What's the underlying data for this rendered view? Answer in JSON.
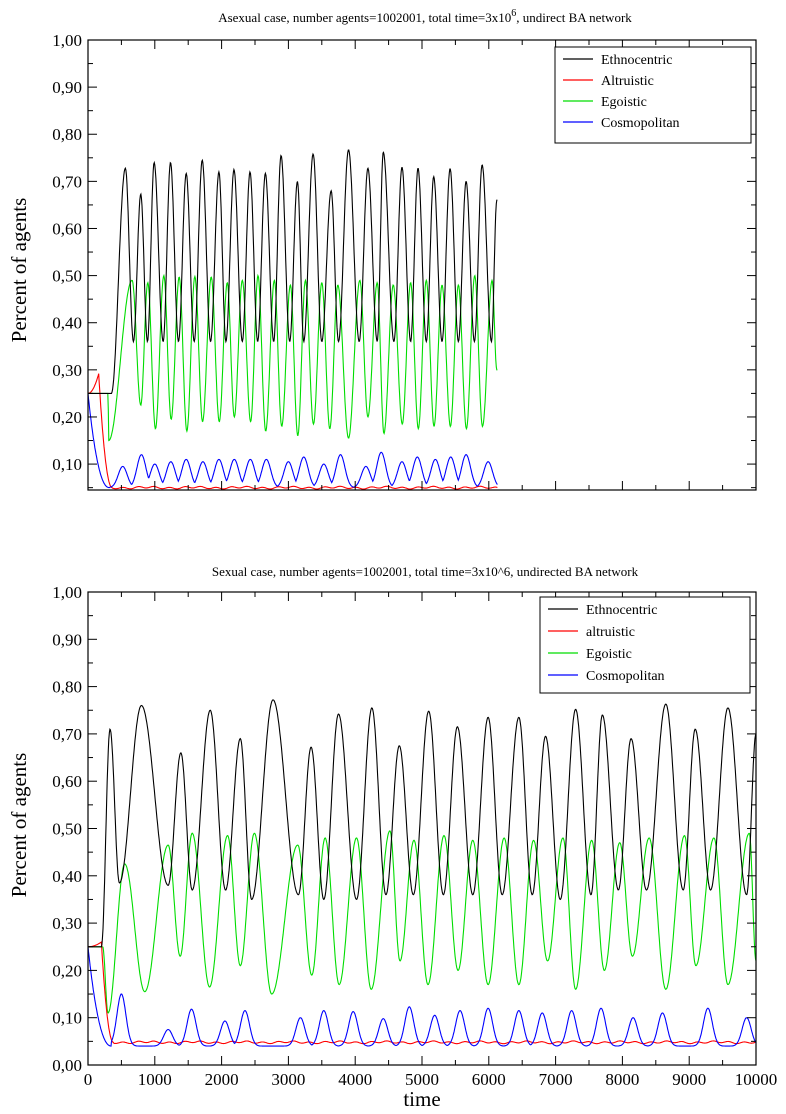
{
  "chart_data": [
    {
      "type": "line",
      "title": "Asexual case, number agents=1002001, total time=3x10",
      "title_sup": "6",
      "title_end": ", undirect BA network",
      "xlabel": "",
      "ylabel": "Percent of agents",
      "xlim": [
        0,
        10000
      ],
      "ylim": [
        0.045,
        1.0
      ],
      "yticks": [
        "0,10",
        "0,20",
        "0,30",
        "0,40",
        "0,50",
        "0,60",
        "0,70",
        "0,80",
        "0,90",
        "1,00"
      ],
      "xticks": [],
      "legend_position": "top-right",
      "grid": false,
      "series": [
        {
          "name": "Ethnocentric",
          "color": "#000000",
          "initial": 0.25,
          "rise_end": 350,
          "ext": [
            [
              560,
              0.728
            ],
            [
              680,
              0.36
            ],
            [
              790,
              0.673
            ],
            [
              890,
              0.36
            ],
            [
              990,
              0.74
            ],
            [
              1125,
              0.36
            ],
            [
              1235,
              0.74
            ],
            [
              1355,
              0.36
            ],
            [
              1470,
              0.717
            ],
            [
              1590,
              0.36
            ],
            [
              1710,
              0.745
            ],
            [
              1835,
              0.36
            ],
            [
              1960,
              0.72
            ],
            [
              2065,
              0.36
            ],
            [
              2185,
              0.725
            ],
            [
              2310,
              0.36
            ],
            [
              2425,
              0.72
            ],
            [
              2540,
              0.36
            ],
            [
              2655,
              0.717
            ],
            [
              2780,
              0.36
            ],
            [
              2890,
              0.755
            ],
            [
              3020,
              0.36
            ],
            [
              3135,
              0.7
            ],
            [
              3230,
              0.36
            ],
            [
              3370,
              0.758
            ],
            [
              3500,
              0.36
            ],
            [
              3640,
              0.68
            ],
            [
              3750,
              0.36
            ],
            [
              3900,
              0.767
            ],
            [
              4060,
              0.36
            ],
            [
              4190,
              0.728
            ],
            [
              4330,
              0.36
            ],
            [
              4420,
              0.762
            ],
            [
              4580,
              0.36
            ],
            [
              4700,
              0.73
            ],
            [
              4830,
              0.36
            ],
            [
              4940,
              0.728
            ],
            [
              5065,
              0.36
            ],
            [
              5175,
              0.71
            ],
            [
              5300,
              0.36
            ],
            [
              5420,
              0.727
            ],
            [
              5545,
              0.36
            ],
            [
              5660,
              0.7
            ],
            [
              5785,
              0.36
            ],
            [
              5900,
              0.735
            ],
            [
              6040,
              0.36
            ],
            [
              6120,
              0.66
            ]
          ]
        },
        {
          "name": "Altruistic",
          "color": "#ff0000",
          "initial": 0.25,
          "peak": 0.292,
          "peak_t": 160,
          "fall_end": 360,
          "base": 0.05
        },
        {
          "name": "Egoistic",
          "color": "#00dd00",
          "initial": 0.25,
          "rise_end": 300,
          "ext": [
            [
              310,
              0.15
            ],
            [
              660,
              0.49
            ],
            [
              790,
              0.225
            ],
            [
              895,
              0.485
            ],
            [
              1010,
              0.175
            ],
            [
              1135,
              0.5
            ],
            [
              1245,
              0.195
            ],
            [
              1365,
              0.497
            ],
            [
              1480,
              0.17
            ],
            [
              1600,
              0.498
            ],
            [
              1715,
              0.19
            ],
            [
              1845,
              0.497
            ],
            [
              1965,
              0.19
            ],
            [
              2085,
              0.485
            ],
            [
              2190,
              0.2
            ],
            [
              2310,
              0.49
            ],
            [
              2435,
              0.19
            ],
            [
              2545,
              0.5
            ],
            [
              2660,
              0.17
            ],
            [
              2790,
              0.49
            ],
            [
              2900,
              0.18
            ],
            [
              3030,
              0.48
            ],
            [
              3140,
              0.16
            ],
            [
              3255,
              0.49
            ],
            [
              3375,
              0.185
            ],
            [
              3500,
              0.485
            ],
            [
              3620,
              0.175
            ],
            [
              3740,
              0.48
            ],
            [
              3900,
              0.155
            ],
            [
              4070,
              0.49
            ],
            [
              4190,
              0.2
            ],
            [
              4330,
              0.485
            ],
            [
              4430,
              0.165
            ],
            [
              4570,
              0.48
            ],
            [
              4705,
              0.185
            ],
            [
              4830,
              0.485
            ],
            [
              4945,
              0.175
            ],
            [
              5065,
              0.49
            ],
            [
              5180,
              0.18
            ],
            [
              5300,
              0.48
            ],
            [
              5425,
              0.18
            ],
            [
              5545,
              0.48
            ],
            [
              5665,
              0.175
            ],
            [
              5790,
              0.5
            ],
            [
              5905,
              0.18
            ],
            [
              6050,
              0.49
            ],
            [
              6120,
              0.3
            ]
          ]
        },
        {
          "name": "Cosmopolitan",
          "color": "#0000ff",
          "initial": 0.25,
          "drop_end": 320,
          "base": 0.05,
          "peaks": [
            [
              520,
              0.095
            ],
            [
              800,
              0.12
            ],
            [
              1000,
              0.1
            ],
            [
              1240,
              0.105
            ],
            [
              1470,
              0.11
            ],
            [
              1720,
              0.105
            ],
            [
              1960,
              0.11
            ],
            [
              2190,
              0.11
            ],
            [
              2430,
              0.11
            ],
            [
              2670,
              0.11
            ],
            [
              3000,
              0.105
            ],
            [
              3230,
              0.115
            ],
            [
              3530,
              0.1
            ],
            [
              3780,
              0.12
            ],
            [
              4160,
              0.095
            ],
            [
              4390,
              0.125
            ],
            [
              4700,
              0.105
            ],
            [
              4930,
              0.115
            ],
            [
              5200,
              0.11
            ],
            [
              5430,
              0.115
            ],
            [
              5660,
              0.12
            ],
            [
              5990,
              0.105
            ]
          ]
        }
      ],
      "visible_t_max": 6130
    },
    {
      "type": "line",
      "title": "Sexual case, number agents=1002001, total time=3x10^6, undirected BA network",
      "xlabel": "time",
      "ylabel": "Percent of agents",
      "xlim": [
        0,
        10000
      ],
      "ylim": [
        0.0,
        1.0
      ],
      "yticks": [
        "0,00",
        "0,10",
        "0,20",
        "0,30",
        "0,40",
        "0,50",
        "0,60",
        "0,70",
        "0,80",
        "0,90",
        "1,00"
      ],
      "xticks": [
        "0",
        "1000",
        "2000",
        "3000",
        "4000",
        "5000",
        "6000",
        "7000",
        "8000",
        "9000",
        "10000"
      ],
      "legend_position": "top-right",
      "grid": false,
      "series": [
        {
          "name": "Ethnocentric",
          "color": "#000000",
          "initial": 0.25,
          "rise_end": 200,
          "ext": [
            [
              330,
              0.71
            ],
            [
              470,
              0.385
            ],
            [
              800,
              0.76
            ],
            [
              1200,
              0.38
            ],
            [
              1390,
              0.66
            ],
            [
              1560,
              0.37
            ],
            [
              1830,
              0.75
            ],
            [
              2060,
              0.37
            ],
            [
              2280,
              0.69
            ],
            [
              2450,
              0.35
            ],
            [
              2770,
              0.772
            ],
            [
              3150,
              0.36
            ],
            [
              3340,
              0.672
            ],
            [
              3530,
              0.35
            ],
            [
              3750,
              0.742
            ],
            [
              4020,
              0.35
            ],
            [
              4250,
              0.755
            ],
            [
              4460,
              0.36
            ],
            [
              4660,
              0.675
            ],
            [
              4870,
              0.36
            ],
            [
              5100,
              0.748
            ],
            [
              5320,
              0.36
            ],
            [
              5530,
              0.715
            ],
            [
              5760,
              0.36
            ],
            [
              5990,
              0.735
            ],
            [
              6200,
              0.36
            ],
            [
              6450,
              0.735
            ],
            [
              6650,
              0.36
            ],
            [
              6850,
              0.695
            ],
            [
              7070,
              0.35
            ],
            [
              7300,
              0.752
            ],
            [
              7530,
              0.36
            ],
            [
              7700,
              0.74
            ],
            [
              7940,
              0.37
            ],
            [
              8130,
              0.69
            ],
            [
              8360,
              0.37
            ],
            [
              8650,
              0.763
            ],
            [
              8910,
              0.37
            ],
            [
              9090,
              0.71
            ],
            [
              9320,
              0.37
            ],
            [
              9580,
              0.755
            ],
            [
              9860,
              0.36
            ],
            [
              10000,
              0.7
            ]
          ]
        },
        {
          "name": "altruistic",
          "color": "#ff0000",
          "initial": 0.25,
          "peak": 0.26,
          "peak_t": 200,
          "fall_end": 380,
          "base": 0.048
        },
        {
          "name": "Egoistic",
          "color": "#00dd00",
          "initial": 0.25,
          "rise_end": 220,
          "ext": [
            [
              300,
              0.11
            ],
            [
              550,
              0.425
            ],
            [
              850,
              0.155
            ],
            [
              1200,
              0.465
            ],
            [
              1380,
              0.23
            ],
            [
              1560,
              0.49
            ],
            [
              1820,
              0.165
            ],
            [
              2090,
              0.485
            ],
            [
              2280,
              0.21
            ],
            [
              2490,
              0.49
            ],
            [
              2750,
              0.15
            ],
            [
              3140,
              0.465
            ],
            [
              3350,
              0.19
            ],
            [
              3550,
              0.48
            ],
            [
              3760,
              0.17
            ],
            [
              4020,
              0.48
            ],
            [
              4240,
              0.16
            ],
            [
              4520,
              0.495
            ],
            [
              4670,
              0.22
            ],
            [
              4880,
              0.475
            ],
            [
              5090,
              0.17
            ],
            [
              5330,
              0.485
            ],
            [
              5540,
              0.2
            ],
            [
              5760,
              0.475
            ],
            [
              5990,
              0.17
            ],
            [
              6230,
              0.48
            ],
            [
              6450,
              0.17
            ],
            [
              6670,
              0.475
            ],
            [
              6880,
              0.22
            ],
            [
              7110,
              0.48
            ],
            [
              7300,
              0.16
            ],
            [
              7540,
              0.475
            ],
            [
              7730,
              0.2
            ],
            [
              7960,
              0.47
            ],
            [
              8150,
              0.23
            ],
            [
              8400,
              0.48
            ],
            [
              8650,
              0.16
            ],
            [
              8930,
              0.485
            ],
            [
              9100,
              0.21
            ],
            [
              9370,
              0.48
            ],
            [
              9580,
              0.17
            ],
            [
              9900,
              0.49
            ],
            [
              10000,
              0.22
            ]
          ]
        },
        {
          "name": "Cosmopolitan",
          "color": "#0000ff",
          "initial": 0.25,
          "drop_end": 350,
          "base": 0.04,
          "peaks": [
            [
              500,
              0.15
            ],
            [
              1200,
              0.075
            ],
            [
              1550,
              0.118
            ],
            [
              2050,
              0.093
            ],
            [
              2350,
              0.115
            ],
            [
              3180,
              0.1
            ],
            [
              3530,
              0.115
            ],
            [
              3970,
              0.113
            ],
            [
              4420,
              0.098
            ],
            [
              4810,
              0.123
            ],
            [
              5190,
              0.105
            ],
            [
              5570,
              0.115
            ],
            [
              5990,
              0.12
            ],
            [
              6450,
              0.115
            ],
            [
              6800,
              0.11
            ],
            [
              7240,
              0.115
            ],
            [
              7680,
              0.12
            ],
            [
              8160,
              0.1
            ],
            [
              8600,
              0.11
            ],
            [
              9280,
              0.12
            ],
            [
              9860,
              0.1
            ]
          ]
        }
      ],
      "visible_t_max": 10000
    }
  ]
}
